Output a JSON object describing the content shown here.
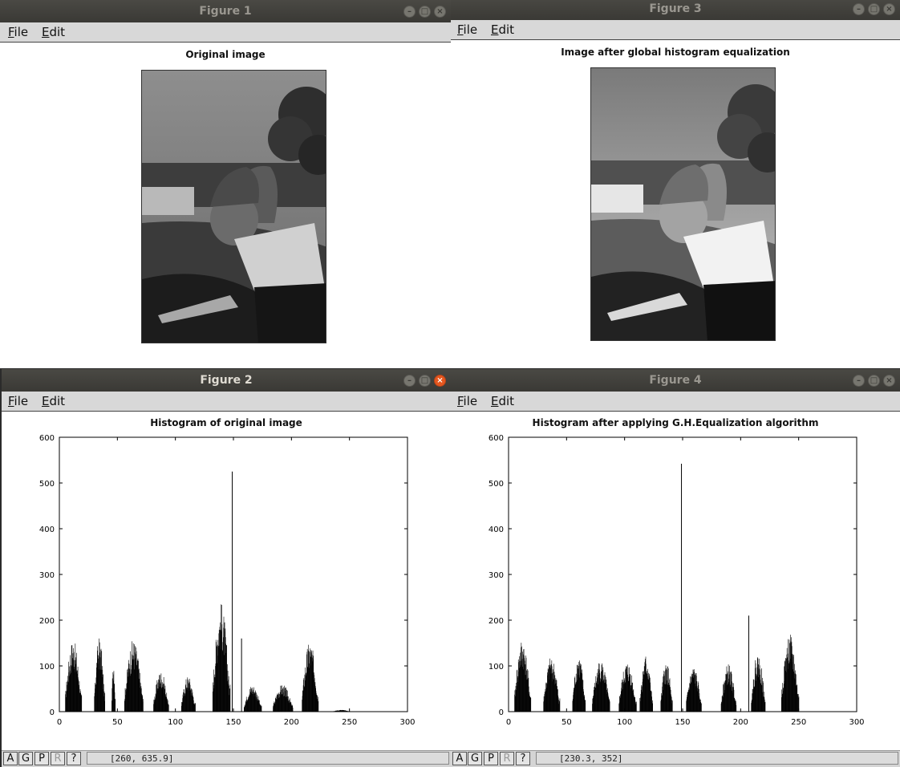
{
  "figures": {
    "fig1": {
      "title": "Figure 1",
      "plot_title": "Original image"
    },
    "fig2": {
      "title": "Figure 2",
      "plot_title": "Histogram of original image",
      "coords": "[260, 635.9]"
    },
    "fig3": {
      "title": "Figure 3",
      "plot_title": "Image after global histogram equalization"
    },
    "fig4": {
      "title": "Figure 4",
      "plot_title": "Histogram after applying G.H.Equalization algorithm",
      "coords": "[230.3, 352]"
    }
  },
  "menu": {
    "file": "File",
    "edit": "Edit"
  },
  "window_buttons": {
    "minimize": "–",
    "maximize": "□",
    "close": "×"
  },
  "status_buttons": [
    "A",
    "G",
    "P",
    "R",
    "?"
  ],
  "colors": {
    "titlebar": "#3d3c38",
    "close_active": "#e5571f",
    "bars": "#000000"
  },
  "chart_data": [
    {
      "type": "bar",
      "title": "Histogram of original image",
      "xlim": [
        0,
        300
      ],
      "ylim": [
        0,
        600
      ],
      "xticks": [
        "0",
        "50",
        "100",
        "150",
        "200",
        "250",
        "300"
      ],
      "yticks": [
        "0",
        "100",
        "200",
        "300",
        "400",
        "500",
        "600"
      ],
      "clusters": [
        {
          "x": [
            5,
            19
          ],
          "peak": 160
        },
        {
          "x": [
            30,
            39
          ],
          "peak": 165
        },
        {
          "x": [
            45,
            48
          ],
          "peak": 125
        },
        {
          "x": [
            56,
            72
          ],
          "peak": 160
        },
        {
          "x": [
            81,
            94
          ],
          "peak": 90
        },
        {
          "x": [
            105,
            117
          ],
          "peak": 80
        },
        {
          "x": [
            132,
            147
          ],
          "peak": 240
        },
        {
          "x": [
            159,
            174
          ],
          "peak": 60
        },
        {
          "x": [
            184,
            201
          ],
          "peak": 60
        },
        {
          "x": [
            209,
            223
          ],
          "peak": 155
        },
        {
          "x": [
            236,
            250
          ],
          "peak": 4
        }
      ],
      "spikes": [
        {
          "x": 149,
          "y": 525
        },
        {
          "x": 157,
          "y": 160
        }
      ]
    },
    {
      "type": "bar",
      "title": "Histogram after applying G.H.Equalization algorithm",
      "xlim": [
        0,
        300
      ],
      "ylim": [
        0,
        600
      ],
      "xticks": [
        "0",
        "50",
        "100",
        "150",
        "200",
        "250",
        "300"
      ],
      "yticks": [
        "0",
        "100",
        "200",
        "300",
        "400",
        "500",
        "600"
      ],
      "clusters": [
        {
          "x": [
            5,
            19
          ],
          "peak": 160
        },
        {
          "x": [
            30,
            44
          ],
          "peak": 120
        },
        {
          "x": [
            55,
            66
          ],
          "peak": 125
        },
        {
          "x": [
            72,
            87
          ],
          "peak": 115
        },
        {
          "x": [
            95,
            110
          ],
          "peak": 110
        },
        {
          "x": [
            113,
            124
          ],
          "peak": 125
        },
        {
          "x": [
            131,
            141
          ],
          "peak": 110
        },
        {
          "x": [
            153,
            166
          ],
          "peak": 100
        },
        {
          "x": [
            183,
            196
          ],
          "peak": 105
        },
        {
          "x": [
            209,
            221
          ],
          "peak": 130
        },
        {
          "x": [
            235,
            250
          ],
          "peak": 170
        }
      ],
      "spikes": [
        {
          "x": 149,
          "y": 542
        },
        {
          "x": 207,
          "y": 210
        }
      ]
    }
  ]
}
